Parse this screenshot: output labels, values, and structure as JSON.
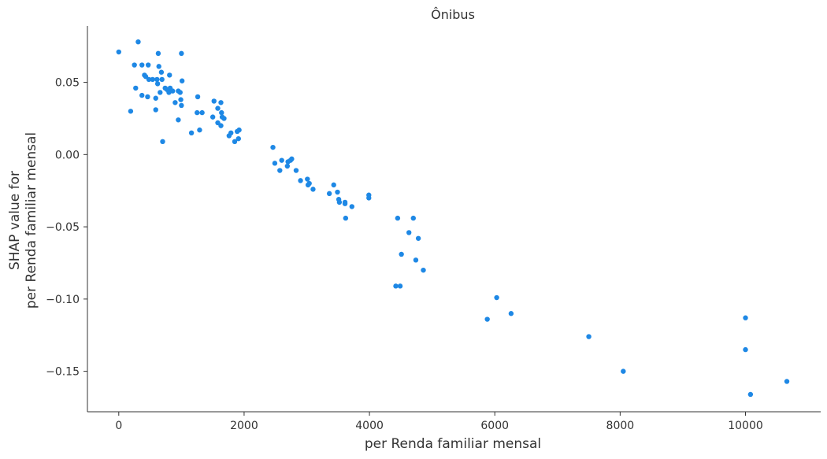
{
  "chart_data": {
    "type": "scatter",
    "title": "Ônibus",
    "xlabel": "per Renda familiar mensal",
    "ylabel_lines": [
      "SHAP value for",
      "per Renda familiar mensal"
    ],
    "xlim": [
      -500,
      11200
    ],
    "ylim": [
      -0.178,
      0.089
    ],
    "xticks": [
      0,
      2000,
      4000,
      6000,
      8000,
      10000
    ],
    "xtick_labels": [
      "0",
      "2000",
      "4000",
      "6000",
      "8000",
      "10000"
    ],
    "yticks": [
      0.05,
      0.0,
      -0.05,
      -0.1,
      -0.15
    ],
    "ytick_labels": [
      "0.05",
      "0.00",
      "−0.05",
      "−0.10",
      "−0.15"
    ],
    "grid": false,
    "point_color": "#1E88E5",
    "points": [
      [
        0,
        0.071
      ],
      [
        310,
        0.078
      ],
      [
        250,
        0.062
      ],
      [
        370,
        0.062
      ],
      [
        470,
        0.062
      ],
      [
        630,
        0.07
      ],
      [
        1000,
        0.07
      ],
      [
        640,
        0.061
      ],
      [
        680,
        0.057
      ],
      [
        410,
        0.055
      ],
      [
        430,
        0.054
      ],
      [
        480,
        0.052
      ],
      [
        540,
        0.052
      ],
      [
        610,
        0.052
      ],
      [
        690,
        0.052
      ],
      [
        810,
        0.055
      ],
      [
        1010,
        0.051
      ],
      [
        620,
        0.049
      ],
      [
        270,
        0.046
      ],
      [
        740,
        0.046
      ],
      [
        820,
        0.046
      ],
      [
        770,
        0.045
      ],
      [
        860,
        0.044
      ],
      [
        950,
        0.044
      ],
      [
        800,
        0.043
      ],
      [
        980,
        0.043
      ],
      [
        660,
        0.043
      ],
      [
        370,
        0.041
      ],
      [
        460,
        0.04
      ],
      [
        590,
        0.039
      ],
      [
        1260,
        0.04
      ],
      [
        990,
        0.038
      ],
      [
        1000,
        0.034
      ],
      [
        900,
        0.036
      ],
      [
        1520,
        0.037
      ],
      [
        1630,
        0.036
      ],
      [
        1580,
        0.032
      ],
      [
        1640,
        0.029
      ],
      [
        190,
        0.03
      ],
      [
        590,
        0.031
      ],
      [
        1250,
        0.029
      ],
      [
        1330,
        0.029
      ],
      [
        1500,
        0.026
      ],
      [
        1650,
        0.026
      ],
      [
        1680,
        0.025
      ],
      [
        950,
        0.024
      ],
      [
        1580,
        0.022
      ],
      [
        1630,
        0.02
      ],
      [
        1290,
        0.017
      ],
      [
        1920,
        0.017
      ],
      [
        1890,
        0.016
      ],
      [
        1790,
        0.015
      ],
      [
        1160,
        0.015
      ],
      [
        1760,
        0.013
      ],
      [
        1910,
        0.011
      ],
      [
        1850,
        0.009
      ],
      [
        700,
        0.009
      ],
      [
        2460,
        0.005
      ],
      [
        2600,
        -0.004
      ],
      [
        2700,
        -0.005
      ],
      [
        2760,
        -0.003
      ],
      [
        2740,
        -0.004
      ],
      [
        2490,
        -0.006
      ],
      [
        2690,
        -0.008
      ],
      [
        2830,
        -0.011
      ],
      [
        2570,
        -0.011
      ],
      [
        2900,
        -0.018
      ],
      [
        3010,
        -0.017
      ],
      [
        3040,
        -0.02
      ],
      [
        3020,
        -0.021
      ],
      [
        3100,
        -0.024
      ],
      [
        3430,
        -0.021
      ],
      [
        3490,
        -0.026
      ],
      [
        3360,
        -0.027
      ],
      [
        3990,
        -0.028
      ],
      [
        3510,
        -0.031
      ],
      [
        3990,
        -0.03
      ],
      [
        3520,
        -0.033
      ],
      [
        3610,
        -0.033
      ],
      [
        3610,
        -0.034
      ],
      [
        3720,
        -0.036
      ],
      [
        3620,
        -0.044
      ],
      [
        4450,
        -0.044
      ],
      [
        4700,
        -0.044
      ],
      [
        4630,
        -0.054
      ],
      [
        4780,
        -0.058
      ],
      [
        4510,
        -0.069
      ],
      [
        4740,
        -0.073
      ],
      [
        4860,
        -0.08
      ],
      [
        4420,
        -0.091
      ],
      [
        4490,
        -0.091
      ],
      [
        6030,
        -0.099
      ],
      [
        5880,
        -0.114
      ],
      [
        6260,
        -0.11
      ],
      [
        7500,
        -0.126
      ],
      [
        8050,
        -0.15
      ],
      [
        10000,
        -0.113
      ],
      [
        10000,
        -0.135
      ],
      [
        10660,
        -0.157
      ],
      [
        10080,
        -0.166
      ]
    ]
  }
}
